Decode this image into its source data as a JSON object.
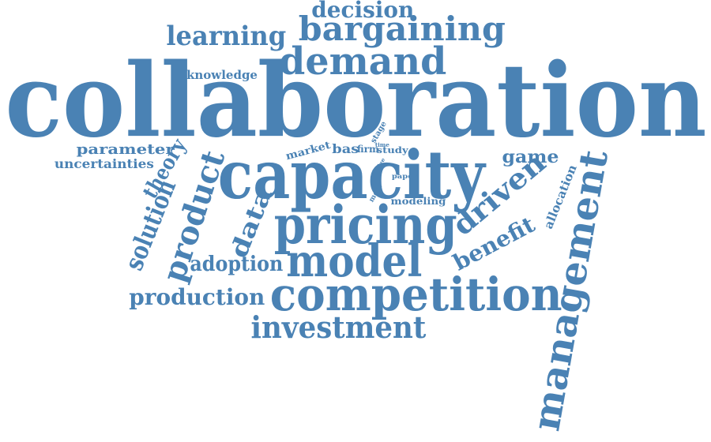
{
  "theme": {
    "word_color": "#4a82b4",
    "background": "#ffffff"
  },
  "words": [
    {
      "text": "collaboration"
    },
    {
      "text": "capacity"
    },
    {
      "text": "pricing"
    },
    {
      "text": "competition"
    },
    {
      "text": "model"
    },
    {
      "text": "management"
    },
    {
      "text": "demand"
    },
    {
      "text": "bargaining"
    },
    {
      "text": "investment"
    },
    {
      "text": "product"
    },
    {
      "text": "learning"
    },
    {
      "text": "decision"
    },
    {
      "text": "driven"
    },
    {
      "text": "production"
    },
    {
      "text": "solution"
    },
    {
      "text": "adoption"
    },
    {
      "text": "benefit"
    },
    {
      "text": "data"
    },
    {
      "text": "theory"
    },
    {
      "text": "game"
    },
    {
      "text": "parameter"
    },
    {
      "text": "uncertainties"
    },
    {
      "text": "knowledge"
    },
    {
      "text": "allocation"
    },
    {
      "text": "modeling"
    },
    {
      "text": "market"
    },
    {
      "text": "bas"
    },
    {
      "text": "firm"
    },
    {
      "text": "study"
    },
    {
      "text": "stage"
    },
    {
      "text": "time"
    },
    {
      "text": "paper"
    },
    {
      "text": "most"
    },
    {
      "text": "size"
    }
  ]
}
